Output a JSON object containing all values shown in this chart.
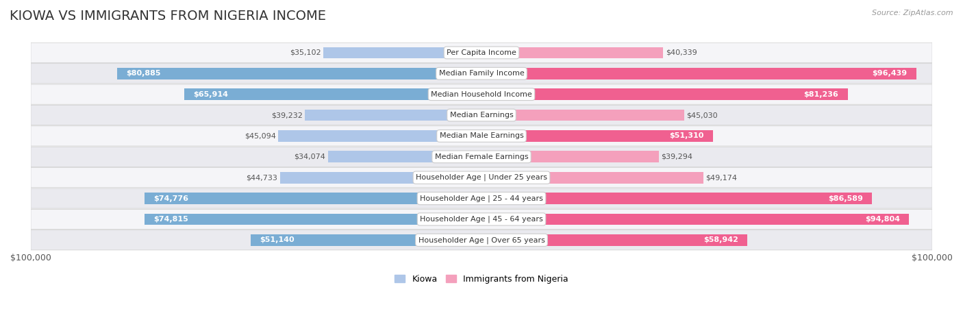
{
  "title": "Kiowa vs Immigrants from Nigeria Income",
  "source": "Source: ZipAtlas.com",
  "categories": [
    "Per Capita Income",
    "Median Family Income",
    "Median Household Income",
    "Median Earnings",
    "Median Male Earnings",
    "Median Female Earnings",
    "Householder Age | Under 25 years",
    "Householder Age | 25 - 44 years",
    "Householder Age | 45 - 64 years",
    "Householder Age | Over 65 years"
  ],
  "kiowa_values": [
    35102,
    80885,
    65914,
    39232,
    45094,
    34074,
    44733,
    74776,
    74815,
    51140
  ],
  "nigeria_values": [
    40339,
    96439,
    81236,
    45030,
    51310,
    39294,
    49174,
    86589,
    94804,
    58942
  ],
  "kiowa_color_light": "#aec6e8",
  "kiowa_color_dark": "#7aadd4",
  "nigeria_color_light": "#f4a0bc",
  "nigeria_color_dark": "#f06090",
  "row_bg_colors": [
    "#f5f5f8",
    "#eaeaef"
  ],
  "max_value": 100000,
  "title_fontsize": 14,
  "source_fontsize": 8,
  "category_fontsize": 8,
  "value_fontsize": 8,
  "legend_fontsize": 9,
  "bar_height": 0.55,
  "background_color": "#ffffff",
  "inside_label_threshold": 50000,
  "axis_label": "$100,000"
}
